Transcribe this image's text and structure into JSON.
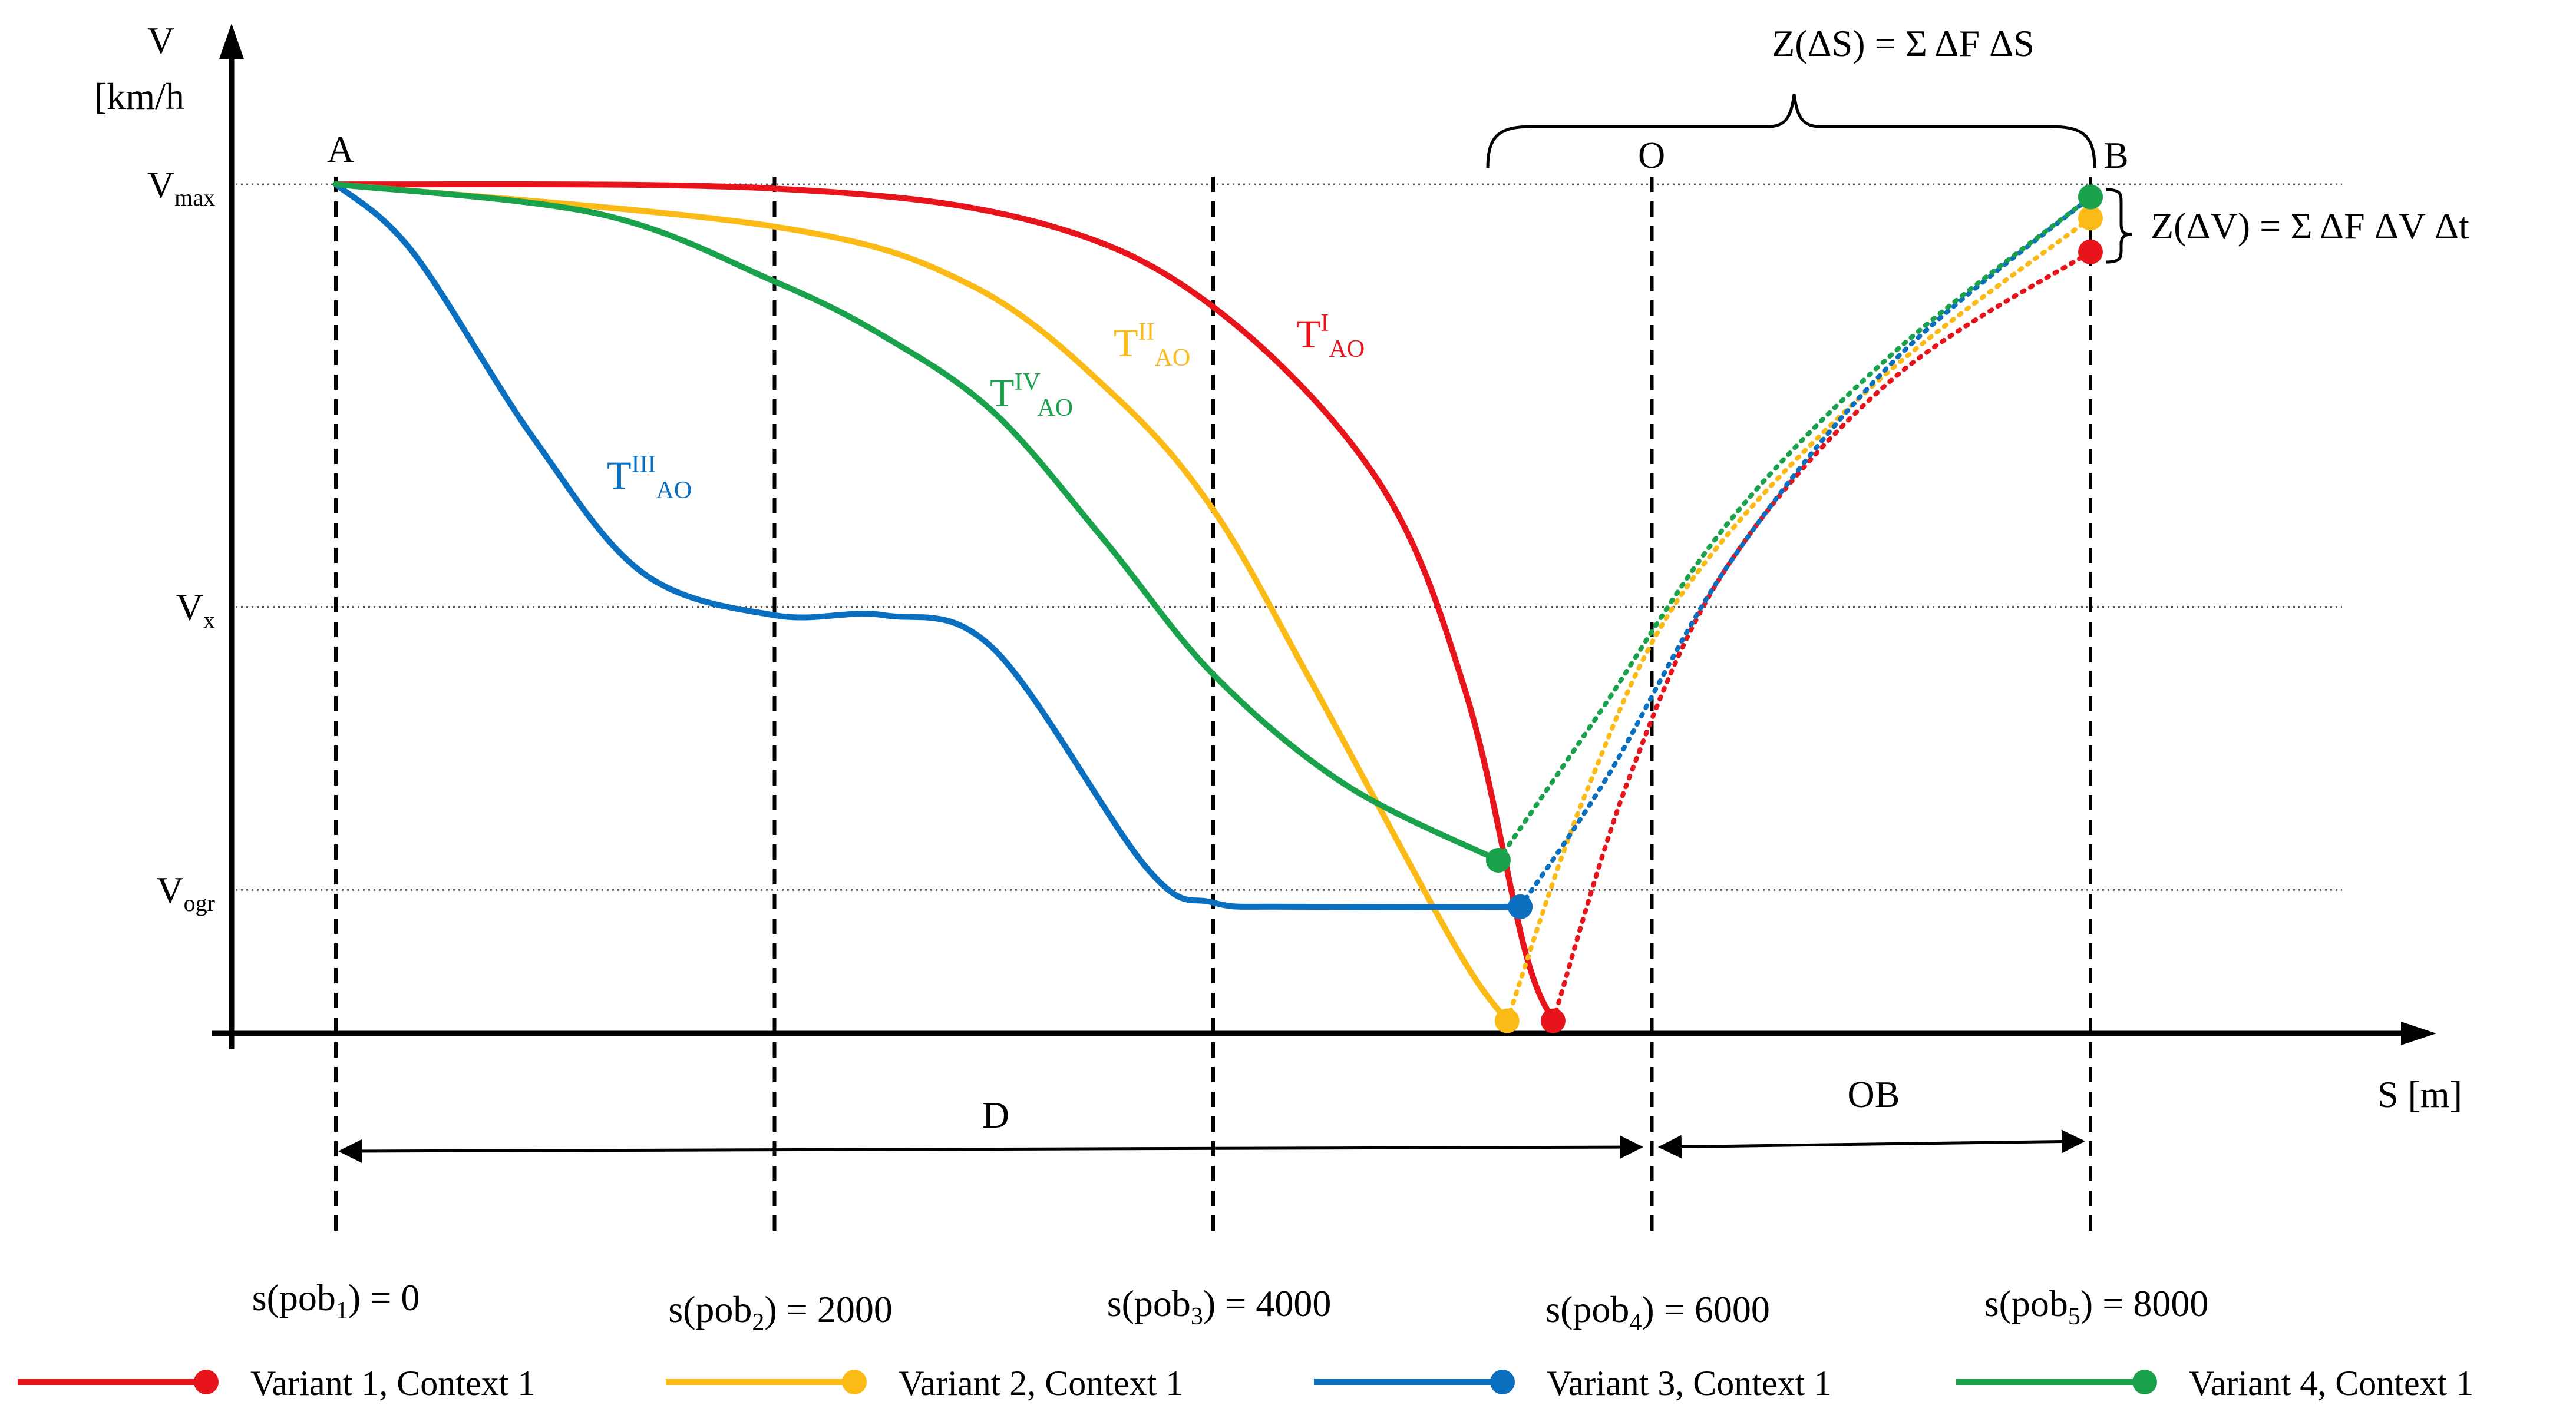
{
  "chart_data": {
    "type": "line",
    "axes": {
      "y_label_line1": "V",
      "y_label_line2": "[km/h",
      "x_label": "S [m]",
      "y_levels": [
        {
          "key": "vmax",
          "main": "V",
          "sub": "max",
          "value": 100
        },
        {
          "key": "vx",
          "main": "V",
          "sub": "x",
          "value": 50
        },
        {
          "key": "vogr",
          "main": "V",
          "sub": "ogr",
          "value": 16.5
        }
      ],
      "y_range": [
        0,
        100
      ],
      "x_range": [
        0,
        8000
      ],
      "grid": "dotted horizontal reference lines at V levels"
    },
    "stations": [
      {
        "pre": "s(pob",
        "sub": "1",
        "post": ") = 0",
        "s": 0
      },
      {
        "pre": "s(pob",
        "sub": "2",
        "post": ") = 2000",
        "s": 2000
      },
      {
        "pre": "s(pob",
        "sub": "3",
        "post": ") = 4000",
        "s": 4000
      },
      {
        "pre": "s(pob",
        "sub": "4",
        "post": ") = 6000",
        "s": 6000
      },
      {
        "pre": "s(pob",
        "sub": "5",
        "post": ") = 8000",
        "s": 8000
      }
    ],
    "points": {
      "start": "A",
      "end": "B",
      "obstacle": "O"
    },
    "segments": {
      "approach": "D",
      "exit": "OB"
    },
    "formulas": {
      "distance": "Z(ΔS) = Σ ΔF ΔS",
      "speed": "Z(ΔV) = Σ ΔF ΔV Δt"
    },
    "series": [
      {
        "name": "Variant 1, Context 1",
        "color": "#e8141c",
        "curve_label": {
          "main": "T",
          "sup": "I",
          "sub": "AO"
        },
        "solid": [
          [
            0,
            100
          ],
          [
            2000,
            99.5
          ],
          [
            3200,
            95.5
          ],
          [
            4000,
            85.5
          ],
          [
            4750,
            65
          ],
          [
            5150,
            40
          ],
          [
            5420,
            9.5
          ],
          [
            5550,
            1
          ]
        ],
        "dotted": [
          [
            5550,
            1
          ],
          [
            5900,
            30
          ],
          [
            6350,
            55
          ],
          [
            7100,
            77
          ],
          [
            8000,
            92
          ]
        ]
      },
      {
        "name": "Variant 2, Context 1",
        "color": "#fbba16",
        "curve_label": {
          "main": "T",
          "sup": "II",
          "sub": "AO"
        },
        "solid": [
          [
            0,
            100
          ],
          [
            2000,
            95
          ],
          [
            2900,
            88
          ],
          [
            3550,
            75
          ],
          [
            4000,
            61.5
          ],
          [
            4450,
            41
          ],
          [
            5100,
            10
          ],
          [
            5340,
            1
          ]
        ],
        "dotted": [
          [
            5340,
            1
          ],
          [
            5700,
            28
          ],
          [
            6150,
            52
          ],
          [
            7000,
            76
          ],
          [
            8000,
            96
          ]
        ]
      },
      {
        "name": "Variant 3, Context 1",
        "color": "#0b6fc0",
        "curve_label": {
          "main": "T",
          "sup": "III",
          "sub": "AO"
        },
        "solid": [
          [
            0,
            100
          ],
          [
            350,
            92
          ],
          [
            900,
            70
          ],
          [
            1400,
            54
          ],
          [
            2000,
            49
          ],
          [
            2500,
            49
          ],
          [
            3000,
            45
          ],
          [
            3700,
            19
          ],
          [
            4000,
            15
          ],
          [
            4350,
            14.5
          ],
          [
            5400,
            14.5
          ]
        ],
        "dotted": [
          [
            5400,
            14.5
          ],
          [
            5800,
            30
          ],
          [
            6350,
            55
          ],
          [
            7100,
            79
          ],
          [
            8000,
            98.5
          ]
        ]
      },
      {
        "name": "Variant 4, Context 1",
        "color": "#1aa14b",
        "curve_label": {
          "main": "T",
          "sup": "IV",
          "sub": "AO"
        },
        "solid": [
          [
            0,
            100
          ],
          [
            1200,
            96.5
          ],
          [
            2000,
            88.5
          ],
          [
            2500,
            82
          ],
          [
            3000,
            73
          ],
          [
            3500,
            58
          ],
          [
            4000,
            42
          ],
          [
            4600,
            29
          ],
          [
            5300,
            20
          ]
        ],
        "dotted": [
          [
            5300,
            20
          ],
          [
            5750,
            37
          ],
          [
            6350,
            60
          ],
          [
            7100,
            80
          ],
          [
            8000,
            98.5
          ]
        ]
      }
    ]
  }
}
